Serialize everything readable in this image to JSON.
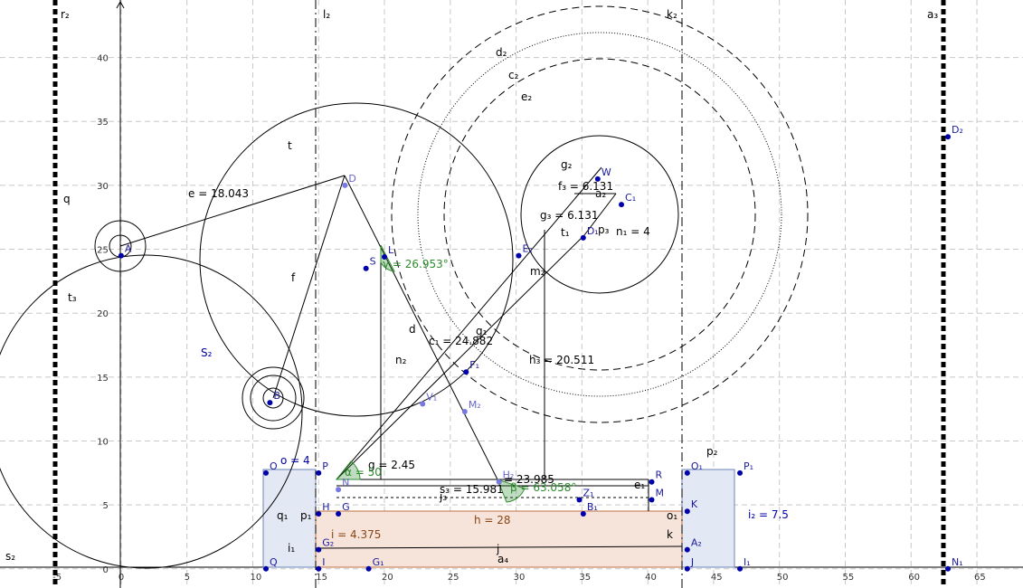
{
  "axis": {
    "x_ticks": [
      "-5",
      "0",
      "5",
      "10",
      "15",
      "20",
      "25",
      "30",
      "35",
      "40",
      "45",
      "50",
      "55",
      "60",
      "65"
    ],
    "y_ticks": [
      "0",
      "5",
      "10",
      "15",
      "20",
      "25",
      "30",
      "35",
      "40"
    ],
    "x_range": [
      -9.2,
      68.5
    ],
    "y_range": [
      -1.5,
      44.5
    ],
    "grid": true
  },
  "colors": {
    "grid": "#c8c8c8",
    "rect_blue_fill": "#e2e8f4",
    "rect_blue_stroke": "#6c84b4",
    "rect_orange_fill": "#f6e4da",
    "rect_orange_stroke": "#c07040",
    "point_dark": "#0000aa",
    "point_light": "#7878e0",
    "angle_green": "#2e8b2e",
    "h_label_brown": "#8b4513"
  },
  "labels": {
    "e": "e = 18.043",
    "g": "g = 2.45",
    "h": "h = 28",
    "i": "i = 4.375",
    "i2": "i₂ = 7.5",
    "o": "o = 4",
    "n1": "n₁ = 4",
    "f3": "f₃ = 6.131",
    "g3": "g₃ = 6.131",
    "c1": "c₁ = 24.882",
    "h3": "h₃ = 20.511",
    "s3": "s₃ = 15.981",
    "e_sub": "= 23.985",
    "gamma": "γ = 26.953°",
    "beta": "β = 63.058°",
    "alpha": "α = 50",
    "r2": "r₂",
    "l2": "l₂",
    "k2": "k₂",
    "a3": "a₃",
    "q": "q",
    "t": "t",
    "t3": "t₃",
    "f": "f",
    "d": "d",
    "d2": "d₂",
    "c2": "c₂",
    "e2": "e₂",
    "n2": "n₂",
    "m2": "m₂",
    "g1": "g₁",
    "g2": "g₂",
    "S2": "S₂",
    "s2": "s₂",
    "q1": "q₁",
    "p1": "p₁",
    "i1": "i₁",
    "p2": "p₂",
    "o1": "o₁",
    "k": "k",
    "j": "j",
    "a4": "a₄",
    "j3": "j₃",
    "e1": "e₁",
    "a2": "a₂",
    "t1": "t₁",
    "p3": "p₃"
  },
  "points": [
    {
      "n": "A",
      "x": 0,
      "y": 24.5,
      "c": "dark"
    },
    {
      "n": "B",
      "x": 11.3,
      "y": 13,
      "c": "dark"
    },
    {
      "n": "D",
      "x": 17,
      "y": 30,
      "c": "light"
    },
    {
      "n": "S",
      "x": 18.6,
      "y": 23.5,
      "c": "dark"
    },
    {
      "n": "L",
      "x": 20,
      "y": 24.4,
      "c": "dark"
    },
    {
      "n": "F₁",
      "x": 26.2,
      "y": 15.4,
      "c": "dark"
    },
    {
      "n": "V₁",
      "x": 22.9,
      "y": 12.9,
      "c": "light"
    },
    {
      "n": "M₂",
      "x": 26.1,
      "y": 12.3,
      "c": "light"
    },
    {
      "n": "O",
      "x": 11,
      "y": 7.5,
      "c": "dark"
    },
    {
      "n": "P",
      "x": 15,
      "y": 7.5,
      "c": "dark"
    },
    {
      "n": "Q",
      "x": 11,
      "y": 0,
      "c": "dark"
    },
    {
      "n": "I",
      "x": 15,
      "y": 0,
      "c": "dark"
    },
    {
      "n": "G",
      "x": 16.5,
      "y": 4.3,
      "c": "dark"
    },
    {
      "n": "H",
      "x": 15,
      "y": 4.3,
      "c": "dark"
    },
    {
      "n": "N",
      "x": 16.5,
      "y": 6.2,
      "c": "light"
    },
    {
      "n": "H₂",
      "x": 28.7,
      "y": 6.8,
      "c": "light"
    },
    {
      "n": "B₁",
      "x": 35.1,
      "y": 4.3,
      "c": "dark"
    },
    {
      "n": "Z₁",
      "x": 34.8,
      "y": 5.4,
      "c": "dark"
    },
    {
      "n": "R",
      "x": 40.3,
      "y": 6.8,
      "c": "dark"
    },
    {
      "n": "M",
      "x": 40.3,
      "y": 5.4,
      "c": "dark"
    },
    {
      "n": "K",
      "x": 43,
      "y": 4.5,
      "c": "dark"
    },
    {
      "n": "O₁",
      "x": 43,
      "y": 7.5,
      "c": "dark"
    },
    {
      "n": "P₁",
      "x": 47,
      "y": 7.5,
      "c": "dark"
    },
    {
      "n": "J",
      "x": 43,
      "y": 0,
      "c": "dark"
    },
    {
      "n": "I₁",
      "x": 47,
      "y": 0,
      "c": "dark"
    },
    {
      "n": "A₂",
      "x": 43,
      "y": 1.5,
      "c": "dark"
    },
    {
      "n": "G₂",
      "x": 15,
      "y": 1.5,
      "c": "dark"
    },
    {
      "n": "G₁",
      "x": 18.8,
      "y": 0,
      "c": "dark"
    },
    {
      "n": "W",
      "x": 36.2,
      "y": 30.5,
      "c": "dark"
    },
    {
      "n": "C₁",
      "x": 38,
      "y": 28.5,
      "c": "dark"
    },
    {
      "n": "D₁",
      "x": 35.1,
      "y": 25.9,
      "c": "dark"
    },
    {
      "n": "E₂",
      "x": 30.2,
      "y": 24.5,
      "c": "dark"
    },
    {
      "n": "D₂",
      "x": 62.8,
      "y": 33.8,
      "c": "dark"
    },
    {
      "n": "N₁",
      "x": 62.8,
      "y": 0,
      "c": "dark"
    }
  ]
}
